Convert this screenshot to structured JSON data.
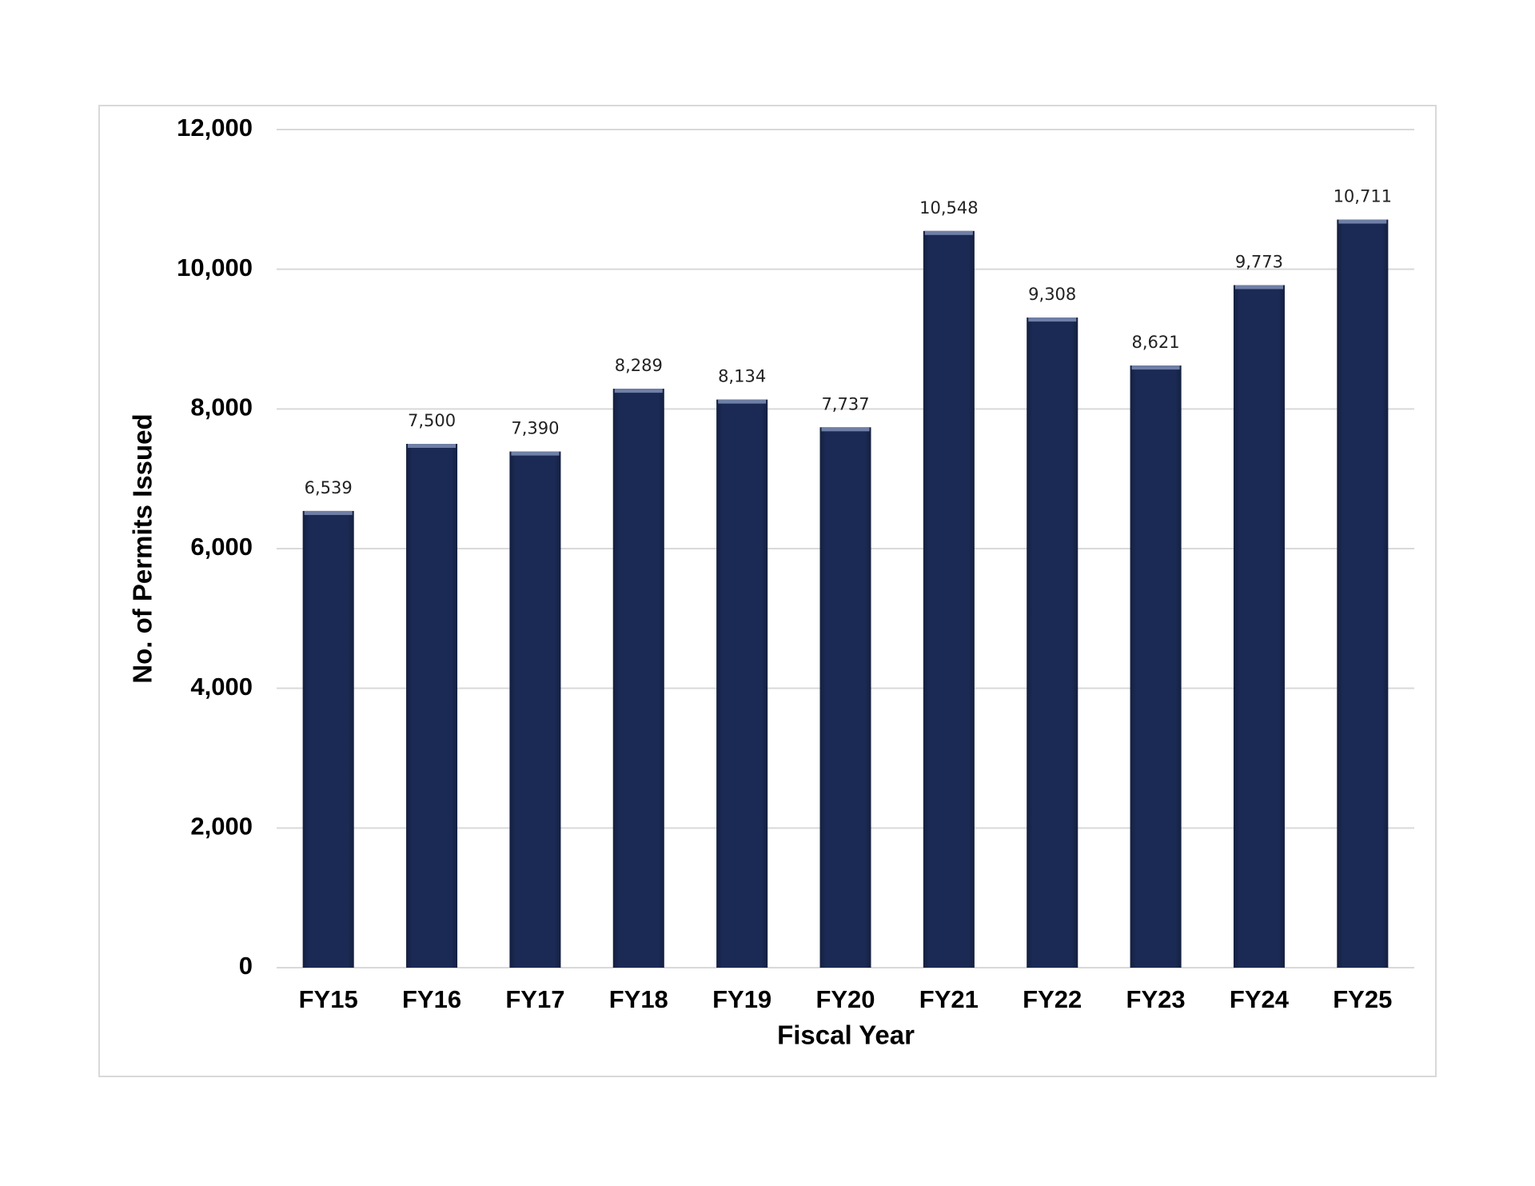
{
  "chart_data": {
    "type": "bar",
    "x_label": "Fiscal Year",
    "y_label": "No. of Permits Issued",
    "categories": [
      "FY15",
      "FY16",
      "FY17",
      "FY18",
      "FY19",
      "FY20",
      "FY21",
      "FY22",
      "FY23",
      "FY24",
      "FY25"
    ],
    "values": [
      6539,
      7500,
      7390,
      8289,
      8134,
      7737,
      10548,
      9308,
      8621,
      9773,
      10711
    ],
    "value_labels": [
      "6,539",
      "7,500",
      "7,390",
      "8,289",
      "8,134",
      "7,737",
      "10,548",
      "9,308",
      "8,621",
      "9,773",
      "10,711"
    ],
    "color": "#1b2a55",
    "ylim": [
      0,
      12000
    ],
    "yticks": [
      0,
      {
        "value": 2000,
        "label": "2,000"
      },
      {
        "value": 4000,
        "label": "4,000"
      },
      {
        "value": 6000,
        "label": "6,000"
      },
      {
        "value": 8000,
        "label": "8,000"
      },
      {
        "value": 10000,
        "label": "10,000"
      },
      {
        "value": 12000,
        "label": "12,000"
      }
    ],
    "grid": true
  }
}
